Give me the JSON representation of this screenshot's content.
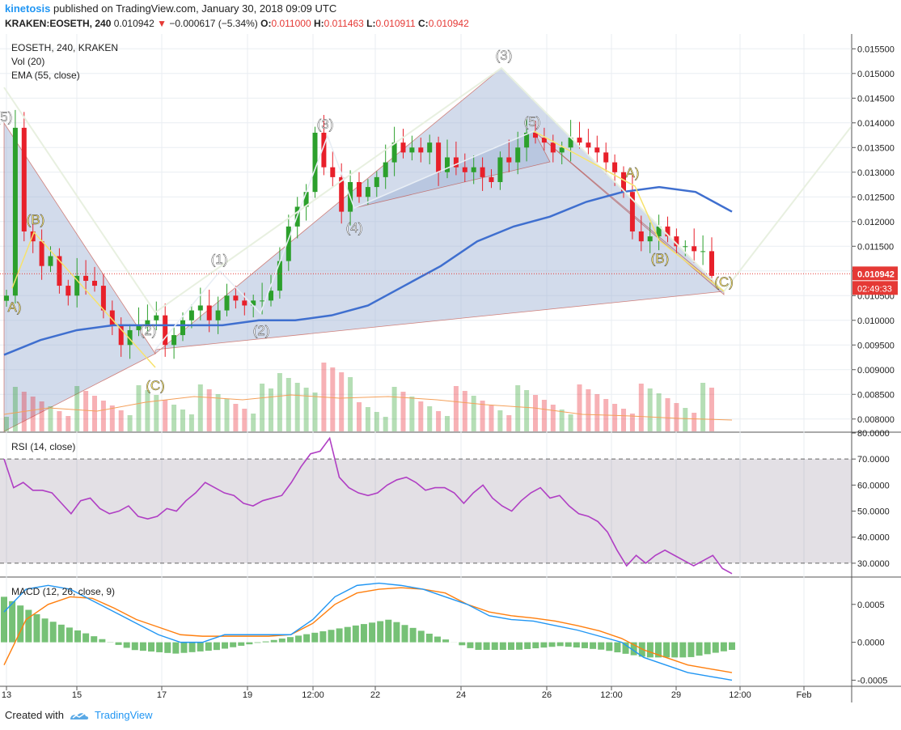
{
  "header": {
    "user": "kinetosis",
    "published_text": "published on TradingView.com, January 30, 2018 09:09 UTC",
    "symbol": "KRAKEN:EOSETH, 240",
    "last": "0.010942",
    "change": "−0.000617 (−5.34%)",
    "o_label": "O:",
    "o_value": "0.011000",
    "h_label": "H:",
    "h_value": "0.011463",
    "l_label": "L:",
    "l_value": "0.010911",
    "c_label": "C:",
    "c_value": "0.010942"
  },
  "legend": {
    "main": "EOSETH, 240, KRAKEN",
    "vol": "Vol (20)",
    "ema": "EMA (55, close)",
    "rsi": "RSI (14, close)",
    "macd": "MACD (12, 26, close, 9)"
  },
  "footer": {
    "created_with": "Created with",
    "brand": "TradingView"
  },
  "colors": {
    "up": "#2ca02c",
    "down": "#e8202a",
    "ema": "#3f6fcf",
    "rsi": "#b03fc4",
    "macd": "#2196f3",
    "signal": "#ff7f0e",
    "pattern_fill": "#9bb0d2",
    "pending": "#f7e26b"
  },
  "chart_data": [
    {
      "type": "candlestick",
      "title": "EOSETH, 240, KRAKEN",
      "price_axis_ticks": [
        "0.015500",
        "0.015000",
        "0.014500",
        "0.014000",
        "0.013500",
        "0.013000",
        "0.012500",
        "0.012000",
        "0.011500",
        "0.011000",
        "0.010500",
        "0.010000",
        "0.009500",
        "0.009000",
        "0.008500",
        "0.008000"
      ],
      "last_price_tag": "0.010942",
      "countdown_tag": "02:49:33",
      "time_axis_ticks": [
        "13",
        "15",
        "17",
        "19",
        "12:00",
        "22",
        "24",
        "26",
        "12:00",
        "29",
        "12:00",
        "Feb"
      ],
      "ylim": [
        0.00775,
        0.0158
      ],
      "grid": true,
      "close_approx": [
        0.0105,
        0.0139,
        0.0118,
        0.0116,
        0.0111,
        0.0113,
        0.0107,
        0.0105,
        0.0109,
        0.0108,
        0.0107,
        0.0102,
        0.0099,
        0.0095,
        0.0098,
        0.0099,
        0.01,
        0.0101,
        0.0095,
        0.0097,
        0.01,
        0.0102,
        0.0103,
        0.01,
        0.0102,
        0.0105,
        0.0104,
        0.0103,
        0.0104,
        0.0104,
        0.0106,
        0.0112,
        0.0119,
        0.0123,
        0.0126,
        0.0138,
        0.0131,
        0.0129,
        0.0122,
        0.0128,
        0.0125,
        0.0127,
        0.0129,
        0.0132,
        0.0136,
        0.0134,
        0.0135,
        0.0134,
        0.0136,
        0.013,
        0.0133,
        0.0131,
        0.013,
        0.0131,
        0.0129,
        0.0128,
        0.0133,
        0.0132,
        0.0135,
        0.0138,
        0.0137,
        0.0136,
        0.0134,
        0.0135,
        0.0137,
        0.0136,
        0.0135,
        0.0134,
        0.0132,
        0.013,
        0.0126,
        0.0118,
        0.0116,
        0.0117,
        0.0119,
        0.0117,
        0.0115,
        0.0115,
        0.0114,
        0.0114,
        0.0109
      ],
      "ema_55_approx": [
        0.0093,
        0.0096,
        0.0098,
        0.0099,
        0.0099,
        0.0099,
        0.0099,
        0.01,
        0.01,
        0.0101,
        0.0103,
        0.0107,
        0.0111,
        0.0116,
        0.0119,
        0.0121,
        0.0124,
        0.0126,
        0.0127,
        0.0126,
        0.0122
      ],
      "wave_labels": [
        "(3)",
        "(5)",
        "(1)",
        "(2)",
        "(3)",
        "(4)",
        "(5)",
        "(B)",
        "A)",
        "(2)",
        "(C)",
        "A)",
        "(B)",
        "(C)"
      ],
      "volume": {
        "title": "Vol (20)",
        "note": "volume histogram with 20-period average"
      },
      "ema": {
        "title": "EMA (55, close)"
      }
    },
    {
      "type": "line",
      "title": "RSI (14, close)",
      "axis_ticks": [
        "80.0000",
        "70.0000",
        "60.0000",
        "50.0000",
        "40.0000",
        "30.0000"
      ],
      "ylim": [
        25,
        80
      ],
      "bands": [
        30,
        70
      ],
      "values": [
        70,
        59,
        61,
        58,
        58,
        57,
        53,
        49,
        54,
        55,
        51,
        49,
        50,
        52,
        48,
        47,
        48,
        51,
        50,
        54,
        57,
        61,
        59,
        57,
        56,
        53,
        52,
        54,
        55,
        56,
        61,
        67,
        72,
        73,
        78,
        63,
        59,
        57,
        56,
        57,
        60,
        62,
        63,
        61,
        58,
        59,
        59,
        57,
        53,
        57,
        60,
        55,
        52,
        50,
        54,
        57,
        59,
        55,
        56,
        52,
        49,
        48,
        46,
        42,
        35,
        29,
        33,
        30,
        33,
        35,
        33,
        31,
        29,
        31,
        33,
        28,
        26
      ]
    },
    {
      "type": "bar",
      "title": "MACD (12, 26, close, 9)",
      "axis_ticks": [
        "0.0005",
        "0.0000",
        "-0.0005"
      ],
      "ylim": [
        -0.00057,
        0.00085
      ],
      "macd_line": [
        0.0004,
        0.0007,
        0.00075,
        0.0007,
        0.00055,
        0.0004,
        0.00025,
        0.0001,
        0.0,
        0.0,
        0.0001,
        0.0001,
        0.0001,
        0.0001,
        0.0003,
        0.0006,
        0.00075,
        0.00078,
        0.00075,
        0.0007,
        0.0006,
        0.0005,
        0.00035,
        0.0003,
        0.00028,
        0.00022,
        0.00016,
        8e-05,
        0.0,
        -0.0002,
        -0.0003,
        -0.0004,
        -0.00045,
        -0.0005
      ],
      "signal_line": [
        -0.0003,
        0.0003,
        0.0005,
        0.0006,
        0.00058,
        0.00045,
        0.0003,
        0.0002,
        0.0001,
        8e-05,
        8e-05,
        8e-05,
        8e-05,
        0.0001,
        0.00025,
        0.0005,
        0.00065,
        0.0007,
        0.00072,
        0.0007,
        0.00065,
        0.0005,
        0.0004,
        0.00035,
        0.00032,
        0.00028,
        0.00022,
        0.00015,
        5e-05,
        -0.0001,
        -0.0002,
        -0.0003,
        -0.00035,
        -0.0004
      ],
      "histogram_approx": [
        0.0006,
        0.0003,
        0.0001,
        -0.0001,
        -0.00015,
        -0.0001,
        0.0,
        0.0001,
        0.0002,
        0.0003,
        0.0001,
        -0.0001,
        -0.0001,
        -5e-05,
        -0.0001,
        -0.0002,
        -0.0002,
        -0.0001
      ]
    }
  ]
}
